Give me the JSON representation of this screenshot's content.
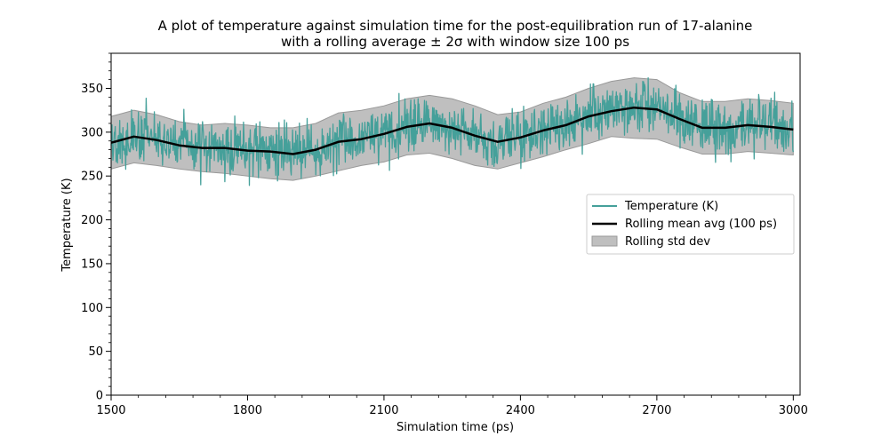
{
  "chart_data": {
    "type": "line",
    "title": "A plot of temperature against simulation time for the post-equilibration run of 17-alanine",
    "subtitle": "with a rolling average ± 2σ with window size 100 ps",
    "xlabel": "Simulation time (ps)",
    "ylabel": "Temperature (K)",
    "xlim": [
      1500,
      3015
    ],
    "ylim": [
      0,
      390
    ],
    "x_ticks": [
      1500,
      1800,
      2100,
      2400,
      2700,
      3000
    ],
    "y_ticks": [
      0,
      50,
      100,
      150,
      200,
      250,
      300,
      350
    ],
    "grid": false,
    "legend": {
      "position": "center-right"
    },
    "colors": {
      "temperature": "#45a09a",
      "rolling_mean": "#000000",
      "band_fill": "#bfbfbf",
      "band_edge": "#999999"
    },
    "series": [
      {
        "name": "Temperature (K)",
        "style": "noisy line",
        "sd": 15
      },
      {
        "name": "Rolling mean avg (100 ps)",
        "x": [
          1500,
          1550,
          1600,
          1650,
          1700,
          1750,
          1800,
          1850,
          1900,
          1950,
          2000,
          2050,
          2100,
          2150,
          2200,
          2250,
          2300,
          2350,
          2400,
          2450,
          2500,
          2550,
          2600,
          2650,
          2700,
          2750,
          2800,
          2850,
          2900,
          2950,
          3000
        ],
        "values": [
          288,
          295,
          291,
          285,
          282,
          282,
          279,
          278,
          275,
          280,
          289,
          292,
          298,
          306,
          310,
          305,
          296,
          289,
          294,
          302,
          308,
          318,
          324,
          328,
          326,
          315,
          305,
          305,
          308,
          306,
          303
        ]
      },
      {
        "name": "Rolling std dev",
        "x": [
          1500,
          1550,
          1600,
          1650,
          1700,
          1750,
          1800,
          1850,
          1900,
          1950,
          2000,
          2050,
          2100,
          2150,
          2200,
          2250,
          2300,
          2350,
          2400,
          2450,
          2500,
          2550,
          2600,
          2650,
          2700,
          2750,
          2800,
          2850,
          2900,
          2950,
          3000
        ],
        "lower": [
          258,
          265,
          262,
          258,
          255,
          253,
          250,
          247,
          245,
          250,
          256,
          262,
          266,
          274,
          276,
          270,
          262,
          258,
          265,
          272,
          280,
          287,
          295,
          293,
          292,
          283,
          275,
          275,
          278,
          276,
          274
        ],
        "upper": [
          318,
          325,
          320,
          312,
          308,
          310,
          308,
          305,
          305,
          310,
          322,
          325,
          330,
          338,
          342,
          338,
          330,
          320,
          323,
          333,
          340,
          350,
          358,
          362,
          360,
          345,
          335,
          335,
          338,
          336,
          333
        ]
      }
    ]
  }
}
